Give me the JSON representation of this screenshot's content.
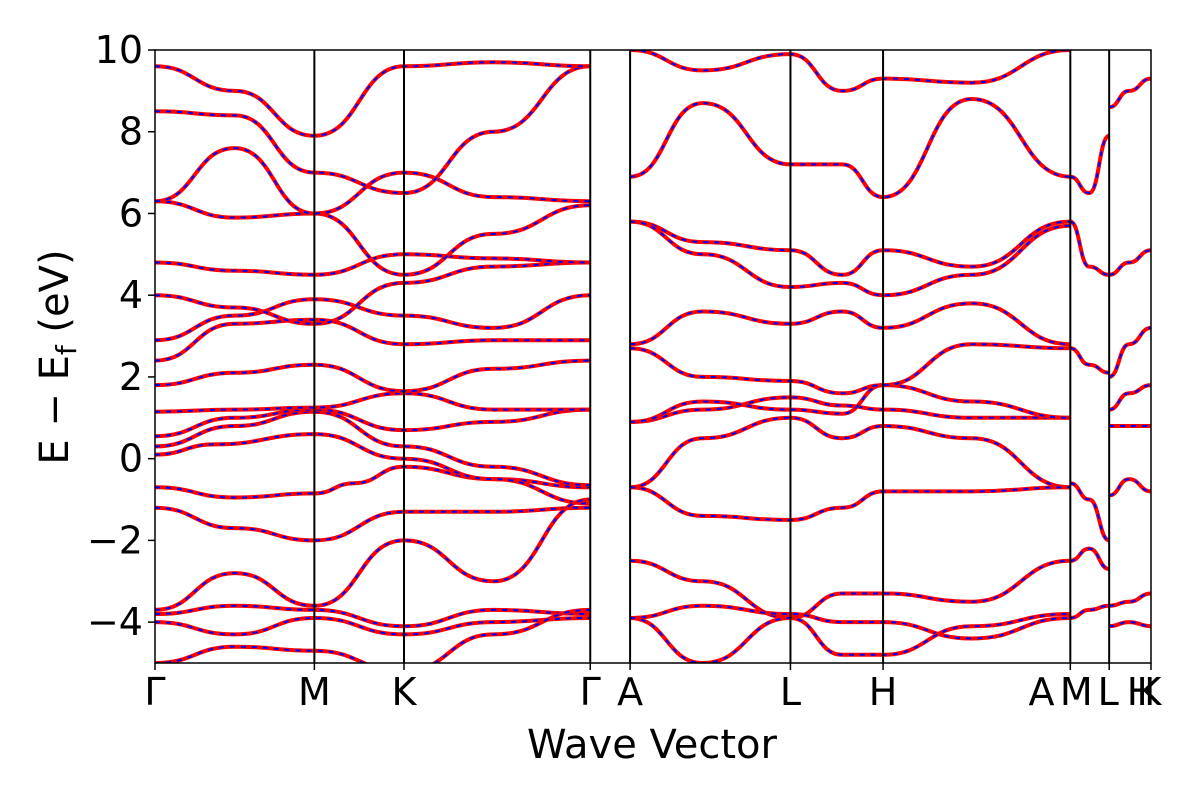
{
  "chart_data": {
    "type": "line",
    "title": "",
    "xlabel": "Wave Vector",
    "ylabel": "E − E",
    "ylabel_sub": "f",
    "ylabel_unit": " (eV)",
    "ylim": [
      -5,
      10
    ],
    "y_ticks": [
      -4,
      -2,
      0,
      2,
      4,
      6,
      8,
      10
    ],
    "y_tick_labels": [
      "−4",
      "−2",
      "0",
      "2",
      "4",
      "6",
      "8",
      "10"
    ],
    "kpoint_positions": [
      0,
      0.16,
      0.25,
      0.437,
      0.477,
      0.638,
      0.731,
      0.919,
      0.958,
      1.0
    ],
    "kpoint_labels": [
      "Γ",
      "M",
      "K",
      "Γ",
      "A",
      "L",
      "H",
      "A",
      "M",
      "L",
      "H",
      "K"
    ],
    "kpoint_label_x": [
      0,
      0.16,
      0.25,
      0.437,
      0.477,
      0.638,
      0.731,
      0.89,
      0.925,
      0.957,
      0.99,
      0.998
    ],
    "colors": {
      "dft": "#ff0000",
      "model": "#0000ff",
      "vline": "#000000"
    },
    "series": [
      {
        "x": [
          0,
          0.08,
          0.16,
          0.2,
          0.25,
          0.34,
          0.437
        ],
        "values": [
          -0.7,
          -0.95,
          -0.85,
          -0.6,
          -0.2,
          -0.5,
          -0.7
        ]
      },
      {
        "x": [
          0,
          0.06,
          0.16,
          0.25,
          0.34,
          0.437
        ],
        "values": [
          0.1,
          0.35,
          0.6,
          0.0,
          -0.5,
          -1.1
        ]
      },
      {
        "x": [
          0,
          0.08,
          0.16,
          0.25,
          0.34,
          0.437
        ],
        "values": [
          0.3,
          0.8,
          1.15,
          0.3,
          -0.2,
          -0.65
        ]
      },
      {
        "x": [
          0,
          0.08,
          0.16,
          0.25,
          0.34,
          0.437
        ],
        "values": [
          0.55,
          1.0,
          1.2,
          0.7,
          0.9,
          1.2
        ]
      },
      {
        "x": [
          0,
          0.08,
          0.16,
          0.25,
          0.34,
          0.437
        ],
        "values": [
          1.15,
          1.2,
          1.25,
          1.6,
          1.2,
          1.2
        ]
      },
      {
        "x": [
          0,
          0.08,
          0.16,
          0.25,
          0.34,
          0.437
        ],
        "values": [
          1.8,
          2.1,
          2.3,
          1.65,
          2.2,
          2.4
        ]
      },
      {
        "x": [
          0,
          0.08,
          0.16,
          0.25,
          0.34,
          0.437
        ],
        "values": [
          2.4,
          3.3,
          3.4,
          2.8,
          2.9,
          2.9
        ]
      },
      {
        "x": [
          0,
          0.08,
          0.16,
          0.25,
          0.34,
          0.437
        ],
        "values": [
          2.9,
          3.5,
          3.9,
          3.5,
          3.2,
          4.0
        ]
      },
      {
        "x": [
          0,
          0.08,
          0.16,
          0.25,
          0.34,
          0.437
        ],
        "values": [
          4.0,
          3.7,
          3.3,
          4.3,
          4.7,
          4.8
        ]
      },
      {
        "x": [
          0,
          0.08,
          0.16,
          0.25,
          0.34,
          0.437
        ],
        "values": [
          4.8,
          4.6,
          4.5,
          5.0,
          4.9,
          4.8
        ]
      },
      {
        "x": [
          0,
          0.08,
          0.16,
          0.25,
          0.34,
          0.437
        ],
        "values": [
          6.3,
          5.9,
          6.0,
          4.5,
          5.5,
          6.2
        ]
      },
      {
        "x": [
          0,
          0.08,
          0.16,
          0.25,
          0.34,
          0.437
        ],
        "values": [
          6.3,
          7.6,
          6.0,
          7.0,
          6.4,
          6.3
        ]
      },
      {
        "x": [
          0,
          0.08,
          0.16,
          0.25,
          0.34,
          0.437
        ],
        "values": [
          8.5,
          8.4,
          7.0,
          6.5,
          8.0,
          9.6
        ]
      },
      {
        "x": [
          0,
          0.08,
          0.16,
          0.25,
          0.34,
          0.437
        ],
        "values": [
          9.6,
          9.0,
          7.9,
          9.6,
          9.7,
          9.6
        ]
      },
      {
        "x": [
          0,
          0.08,
          0.16,
          0.25,
          0.34,
          0.437
        ],
        "values": [
          -1.2,
          -1.7,
          -2.0,
          -1.3,
          -1.3,
          -1.2
        ]
      },
      {
        "x": [
          0,
          0.08,
          0.16,
          0.25,
          0.34,
          0.437
        ],
        "values": [
          -3.7,
          -2.8,
          -3.6,
          -2.0,
          -3.0,
          -1.0
        ]
      },
      {
        "x": [
          0,
          0.08,
          0.16,
          0.25,
          0.34,
          0.437
        ],
        "values": [
          -3.8,
          -3.6,
          -3.7,
          -4.1,
          -3.7,
          -3.8
        ]
      },
      {
        "x": [
          0,
          0.08,
          0.16,
          0.25,
          0.34,
          0.437
        ],
        "values": [
          -4.0,
          -4.3,
          -3.9,
          -4.3,
          -4.0,
          -3.9
        ]
      },
      {
        "x": [
          0,
          0.08,
          0.16,
          0.25,
          0.34,
          0.437
        ],
        "values": [
          -5.0,
          -4.6,
          -4.7,
          -5.2,
          -4.3,
          -3.7
        ]
      },
      {
        "x": [
          0.477,
          0.55,
          0.638,
          0.69,
          0.731,
          0.82,
          0.919
        ],
        "values": [
          -0.7,
          0.5,
          1.0,
          0.5,
          0.8,
          0.5,
          -0.7
        ]
      },
      {
        "x": [
          0.477,
          0.55,
          0.638,
          0.69,
          0.731,
          0.82,
          0.919
        ],
        "values": [
          -0.7,
          -1.4,
          -1.5,
          -1.2,
          -0.8,
          -0.8,
          -0.7
        ]
      },
      {
        "x": [
          0.477,
          0.55,
          0.638,
          0.69,
          0.731,
          0.82,
          0.919
        ],
        "values": [
          0.9,
          1.2,
          1.5,
          1.3,
          1.2,
          1.0,
          1.0
        ]
      },
      {
        "x": [
          0.477,
          0.55,
          0.638,
          0.69,
          0.731,
          0.82,
          0.919
        ],
        "values": [
          0.9,
          1.4,
          1.2,
          1.1,
          1.8,
          1.4,
          1.0
        ]
      },
      {
        "x": [
          0.477,
          0.55,
          0.638,
          0.69,
          0.731,
          0.82,
          0.919
        ],
        "values": [
          2.7,
          2.0,
          1.9,
          1.6,
          1.8,
          2.8,
          2.7
        ]
      },
      {
        "x": [
          0.477,
          0.55,
          0.638,
          0.69,
          0.731,
          0.82,
          0.919
        ],
        "values": [
          2.8,
          3.6,
          3.3,
          3.6,
          3.2,
          3.8,
          2.8
        ]
      },
      {
        "x": [
          0.477,
          0.55,
          0.638,
          0.69,
          0.731,
          0.82,
          0.919
        ],
        "values": [
          5.8,
          5.3,
          5.1,
          4.5,
          5.1,
          4.7,
          5.8
        ]
      },
      {
        "x": [
          0.477,
          0.55,
          0.638,
          0.69,
          0.731,
          0.82,
          0.919
        ],
        "values": [
          5.8,
          5.0,
          4.2,
          4.3,
          4.0,
          4.5,
          5.7
        ]
      },
      {
        "x": [
          0.477,
          0.55,
          0.638,
          0.69,
          0.731,
          0.82,
          0.919
        ],
        "values": [
          6.9,
          8.7,
          7.2,
          7.2,
          6.4,
          8.8,
          6.9
        ]
      },
      {
        "x": [
          0.477,
          0.55,
          0.638,
          0.69,
          0.731,
          0.82,
          0.919
        ],
        "values": [
          10.0,
          9.5,
          9.9,
          9.0,
          9.3,
          9.2,
          10.0
        ]
      },
      {
        "x": [
          0.477,
          0.55,
          0.638,
          0.69,
          0.731,
          0.82,
          0.919
        ],
        "values": [
          -2.5,
          -3.0,
          -3.9,
          -3.3,
          -3.3,
          -3.5,
          -2.5
        ]
      },
      {
        "x": [
          0.477,
          0.55,
          0.638,
          0.69,
          0.731,
          0.82,
          0.919
        ],
        "values": [
          -3.9,
          -3.6,
          -3.8,
          -4.0,
          -4.0,
          -4.4,
          -3.9
        ]
      },
      {
        "x": [
          0.477,
          0.55,
          0.638,
          0.69,
          0.731,
          0.82,
          0.919
        ],
        "values": [
          -3.9,
          -5.0,
          -3.9,
          -4.8,
          -4.8,
          -4.1,
          -3.8
        ]
      },
      {
        "x": [
          0.919,
          0.938,
          0.958
        ],
        "values": [
          -0.6,
          -1.0,
          -2.0
        ]
      },
      {
        "x": [
          0.919,
          0.938,
          0.958
        ],
        "values": [
          -2.5,
          -2.2,
          -2.7
        ]
      },
      {
        "x": [
          0.919,
          0.938,
          0.958
        ],
        "values": [
          -3.9,
          -3.7,
          -3.6
        ]
      },
      {
        "x": [
          0.919,
          0.938,
          0.958
        ],
        "values": [
          2.7,
          2.3,
          2.1
        ]
      },
      {
        "x": [
          0.919,
          0.938,
          0.958
        ],
        "values": [
          5.8,
          4.7,
          4.5
        ]
      },
      {
        "x": [
          0.919,
          0.938,
          0.958
        ],
        "values": [
          6.9,
          6.5,
          7.9
        ]
      },
      {
        "x": [
          0.958,
          0.978,
          1.0
        ],
        "values": [
          -0.9,
          -0.5,
          -0.8
        ]
      },
      {
        "x": [
          0.958,
          0.978,
          1.0
        ],
        "values": [
          0.8,
          0.8,
          0.8
        ]
      },
      {
        "x": [
          0.958,
          0.978,
          1.0
        ],
        "values": [
          1.2,
          1.6,
          1.8
        ]
      },
      {
        "x": [
          0.958,
          0.978,
          1.0
        ],
        "values": [
          2.0,
          2.8,
          3.2
        ]
      },
      {
        "x": [
          0.958,
          0.978,
          1.0
        ],
        "values": [
          4.5,
          4.8,
          5.1
        ]
      },
      {
        "x": [
          0.958,
          0.978,
          1.0
        ],
        "values": [
          8.6,
          9.0,
          9.3
        ]
      },
      {
        "x": [
          0.958,
          0.978,
          1.0
        ],
        "values": [
          -4.1,
          -4.0,
          -4.1
        ]
      },
      {
        "x": [
          0.958,
          0.978,
          1.0
        ],
        "values": [
          -3.6,
          -3.5,
          -3.3
        ]
      }
    ]
  }
}
